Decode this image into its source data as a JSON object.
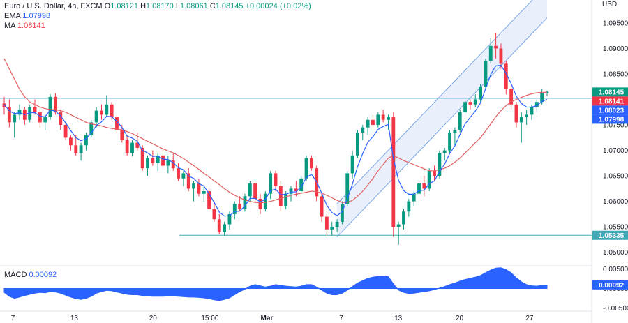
{
  "header": {
    "symbol": "Euro / U.S. Dollar, 4h, FXCM",
    "ohlc": [
      {
        "key": "O",
        "value": "1.08121"
      },
      {
        "key": "H",
        "value": "1.08170"
      },
      {
        "key": "L",
        "value": "1.08061"
      },
      {
        "key": "C",
        "value": "1.08145"
      }
    ],
    "change": "+0.00024 (+0.02%)",
    "ema_label": "EMA",
    "ema_value": "1.07998",
    "ma_label": "MA",
    "ma_value": "1.08141"
  },
  "currency": "USD",
  "macd": {
    "label": "MACD",
    "value": "0.00092"
  },
  "colors": {
    "up": "#089981",
    "down": "#f23645",
    "ema": "#2962ff",
    "ma": "#e06060",
    "hline": "#3fa9b5",
    "channel": "#e3ecfb",
    "channel_edge": "#7aa5e6",
    "macd": "#2962ff"
  },
  "chart_data": [
    {
      "type": "line",
      "title": "",
      "series_names": [],
      "ylim": [
        1.0475,
        1.0995
      ],
      "yticks": [
        "1.09500",
        "1.09000",
        "1.08500",
        "1.08000",
        "1.07500",
        "1.07000",
        "1.06500",
        "1.06000",
        "1.05500",
        "1.05000"
      ],
      "xticks": [
        "7",
        "13",
        "20",
        "15:00",
        "Mar",
        "7",
        "13",
        "20",
        "27"
      ],
      "price_badges": [
        {
          "value": "1.08145",
          "color": "#089981"
        },
        {
          "value": "1.08141",
          "color": "#f23645"
        },
        {
          "value": "1.08023",
          "color": "#2962ff"
        },
        {
          "value": "1.07998",
          "color": "#2962ff"
        },
        {
          "value": "1.05335",
          "color": "#3fa9b5"
        }
      ],
      "horizontal_levels": [
        1.08023,
        1.05335
      ],
      "candles": [
        [
          1.0792,
          1.0805,
          1.077,
          1.0785
        ],
        [
          1.0785,
          1.08,
          1.0745,
          1.0755
        ],
        [
          1.0755,
          1.0775,
          1.0725,
          1.077
        ],
        [
          1.077,
          1.079,
          1.076,
          1.078
        ],
        [
          1.078,
          1.0785,
          1.075,
          1.076
        ],
        [
          1.076,
          1.079,
          1.0755,
          1.0785
        ],
        [
          1.0785,
          1.08,
          1.077,
          1.0775
        ],
        [
          1.0775,
          1.078,
          1.0745,
          1.0755
        ],
        [
          1.0755,
          1.077,
          1.074,
          1.0765
        ],
        [
          1.0765,
          1.081,
          1.076,
          1.0805
        ],
        [
          1.0805,
          1.0812,
          1.077,
          1.0775
        ],
        [
          1.0775,
          1.078,
          1.074,
          1.075
        ],
        [
          1.075,
          1.0755,
          1.072,
          1.0725
        ],
        [
          1.0725,
          1.073,
          1.07,
          1.071
        ],
        [
          1.071,
          1.073,
          1.069,
          1.0695
        ],
        [
          1.0695,
          1.0715,
          1.068,
          1.071
        ],
        [
          1.071,
          1.0735,
          1.07,
          1.073
        ],
        [
          1.073,
          1.076,
          1.0725,
          1.0755
        ],
        [
          1.0755,
          1.0785,
          1.0745,
          1.0778
        ],
        [
          1.0778,
          1.079,
          1.076,
          1.077
        ],
        [
          1.077,
          1.0808,
          1.0765,
          1.079
        ],
        [
          1.079,
          1.0795,
          1.076,
          1.0765
        ],
        [
          1.0765,
          1.077,
          1.0735,
          1.074
        ],
        [
          1.074,
          1.075,
          1.0715,
          1.072
        ],
        [
          1.072,
          1.073,
          1.069,
          1.0695
        ],
        [
          1.0695,
          1.072,
          1.0688,
          1.0715
        ],
        [
          1.0715,
          1.0735,
          1.07,
          1.0705
        ],
        [
          1.0705,
          1.071,
          1.066,
          1.0665
        ],
        [
          1.0665,
          1.069,
          1.065,
          1.0685
        ],
        [
          1.0685,
          1.07,
          1.067,
          1.0675
        ],
        [
          1.0675,
          1.0695,
          1.066,
          1.069
        ],
        [
          1.069,
          1.07,
          1.0665,
          1.067
        ],
        [
          1.067,
          1.069,
          1.0655,
          1.068
        ],
        [
          1.068,
          1.0695,
          1.066,
          1.0665
        ],
        [
          1.0665,
          1.0675,
          1.064,
          1.0645
        ],
        [
          1.0645,
          1.066,
          1.063,
          1.0655
        ],
        [
          1.0655,
          1.0665,
          1.062,
          1.0625
        ],
        [
          1.0625,
          1.064,
          1.06,
          1.0635
        ],
        [
          1.0635,
          1.0645,
          1.061,
          1.0615
        ],
        [
          1.0615,
          1.063,
          1.06,
          1.062
        ],
        [
          1.062,
          1.0625,
          1.058,
          1.0585
        ],
        [
          1.0585,
          1.06,
          1.056,
          1.0565
        ],
        [
          1.0565,
          1.0575,
          1.0535,
          1.054
        ],
        [
          1.054,
          1.056,
          1.0533,
          1.0555
        ],
        [
          1.0555,
          1.058,
          1.0545,
          1.0575
        ],
        [
          1.0575,
          1.06,
          1.0565,
          1.0595
        ],
        [
          1.0595,
          1.061,
          1.058,
          1.0585
        ],
        [
          1.0585,
          1.0615,
          1.058,
          1.061
        ],
        [
          1.061,
          1.064,
          1.06,
          1.0635
        ],
        [
          1.0635,
          1.064,
          1.06,
          1.0605
        ],
        [
          1.0605,
          1.0615,
          1.0575,
          1.0585
        ],
        [
          1.0585,
          1.062,
          1.058,
          1.0615
        ],
        [
          1.0615,
          1.066,
          1.0605,
          1.0655
        ],
        [
          1.0655,
          1.066,
          1.062,
          1.063
        ],
        [
          1.063,
          1.064,
          1.058,
          1.059
        ],
        [
          1.059,
          1.062,
          1.0585,
          1.0615
        ],
        [
          1.0615,
          1.063,
          1.06,
          1.0625
        ],
        [
          1.0625,
          1.064,
          1.061,
          1.062
        ],
        [
          1.062,
          1.065,
          1.0615,
          1.0645
        ],
        [
          1.0645,
          1.069,
          1.064,
          1.0685
        ],
        [
          1.0685,
          1.069,
          1.066,
          1.0665
        ],
        [
          1.0665,
          1.067,
          1.06,
          1.061
        ],
        [
          1.061,
          1.0615,
          1.056,
          1.057
        ],
        [
          1.057,
          1.0575,
          1.0533,
          1.0545
        ],
        [
          1.0545,
          1.056,
          1.0533,
          1.055
        ],
        [
          1.055,
          1.0565,
          1.054,
          1.056
        ],
        [
          1.056,
          1.06,
          1.0555,
          1.0595
        ],
        [
          1.0595,
          1.066,
          1.059,
          1.0655
        ],
        [
          1.0655,
          1.07,
          1.0645,
          1.069
        ],
        [
          1.069,
          1.074,
          1.0685,
          1.0735
        ],
        [
          1.0735,
          1.075,
          1.072,
          1.0745
        ],
        [
          1.0745,
          1.0765,
          1.073,
          1.076
        ],
        [
          1.076,
          1.077,
          1.074,
          1.075
        ],
        [
          1.075,
          1.0775,
          1.0745,
          1.077
        ],
        [
          1.077,
          1.078,
          1.0755,
          1.076
        ],
        [
          1.076,
          1.077,
          1.074,
          1.0765
        ],
        [
          1.0765,
          1.0775,
          1.053,
          1.055
        ],
        [
          1.055,
          1.056,
          1.0515,
          1.0555
        ],
        [
          1.0555,
          1.0585,
          1.0545,
          1.058
        ],
        [
          1.058,
          1.0605,
          1.057,
          1.06
        ],
        [
          1.06,
          1.062,
          1.059,
          1.0615
        ],
        [
          1.0615,
          1.064,
          1.0605,
          1.0635
        ],
        [
          1.0635,
          1.065,
          1.061,
          1.0625
        ],
        [
          1.0625,
          1.0665,
          1.062,
          1.066
        ],
        [
          1.066,
          1.067,
          1.064,
          1.065
        ],
        [
          1.065,
          1.07,
          1.0645,
          1.0695
        ],
        [
          1.0695,
          1.0705,
          1.068,
          1.07
        ],
        [
          1.07,
          1.074,
          1.0695,
          1.0735
        ],
        [
          1.0735,
          1.0745,
          1.071,
          1.074
        ],
        [
          1.074,
          1.078,
          1.0735,
          1.0775
        ],
        [
          1.0775,
          1.08,
          1.077,
          1.0795
        ],
        [
          1.0795,
          1.08,
          1.078,
          1.079
        ],
        [
          1.079,
          1.081,
          1.0785,
          1.08
        ],
        [
          1.08,
          1.083,
          1.0795,
          1.0825
        ],
        [
          1.0825,
          1.088,
          1.082,
          1.0875
        ],
        [
          1.0875,
          1.092,
          1.087,
          1.0905
        ],
        [
          1.0905,
          1.093,
          1.088,
          1.09
        ],
        [
          1.09,
          1.091,
          1.086,
          1.087
        ],
        [
          1.087,
          1.0875,
          1.081,
          1.082
        ],
        [
          1.082,
          1.083,
          1.078,
          1.079
        ],
        [
          1.079,
          1.0795,
          1.0745,
          1.0755
        ],
        [
          1.0755,
          1.0775,
          1.0715,
          1.0765
        ],
        [
          1.0765,
          1.078,
          1.075,
          1.077
        ],
        [
          1.077,
          1.079,
          1.076,
          1.0785
        ],
        [
          1.0785,
          1.08,
          1.0775,
          1.0795
        ],
        [
          1.0795,
          1.082,
          1.079,
          1.0812
        ],
        [
          1.0812,
          1.0817,
          1.0806,
          1.0815
        ]
      ],
      "ema": [
        1.079,
        1.0778,
        1.0772,
        1.0774,
        1.077,
        1.0774,
        1.0774,
        1.0767,
        1.0766,
        1.0779,
        1.0777,
        1.0768,
        1.0754,
        1.0739,
        1.0725,
        1.0719,
        1.0723,
        1.0734,
        1.0749,
        1.0756,
        1.0767,
        1.0766,
        1.0757,
        1.0745,
        1.0728,
        1.0724,
        1.0718,
        1.07,
        1.0695,
        1.0688,
        1.0689,
        1.0683,
        1.0682,
        1.0676,
        1.0666,
        1.0662,
        1.065,
        1.0645,
        1.0635,
        1.063,
        1.0615,
        1.0598,
        1.0579,
        1.0571,
        1.0572,
        1.058,
        1.0581,
        1.0591,
        1.0606,
        1.0606,
        1.0599,
        1.0604,
        1.0621,
        1.0624,
        1.0613,
        1.0614,
        1.0618,
        1.0619,
        1.0628,
        1.0647,
        1.0653,
        1.0639,
        1.0616,
        1.0592,
        1.0578,
        1.0572,
        1.058,
        1.0605,
        1.0634,
        1.0668,
        1.0694,
        1.0716,
        1.0727,
        1.0741,
        1.0747,
        1.0751,
        1.0684,
        1.0641,
        1.0621,
        1.0614,
        1.0614,
        1.0621,
        1.0622,
        1.0635,
        1.064,
        1.0659,
        1.0673,
        1.0694,
        1.0709,
        1.0731,
        1.0752,
        1.0765,
        1.0777,
        1.0793,
        1.0821,
        1.0849,
        1.0866,
        1.0867,
        1.0851,
        1.0831,
        1.0806,
        1.0792,
        1.0785,
        1.0785,
        1.0788,
        1.0796,
        1.08
      ],
      "ma": [
        1.088,
        1.086,
        1.084,
        1.082,
        1.0805,
        1.0795,
        1.079,
        1.0785,
        1.0782,
        1.078,
        1.078,
        1.0778,
        1.0775,
        1.077,
        1.0765,
        1.076,
        1.0755,
        1.0752,
        1.075,
        1.0748,
        1.0745,
        1.0743,
        1.0742,
        1.074,
        1.0737,
        1.0733,
        1.0728,
        1.0723,
        1.0718,
        1.0713,
        1.0708,
        1.0703,
        1.0699,
        1.0695,
        1.069,
        1.0684,
        1.0677,
        1.067,
        1.0663,
        1.0655,
        1.0648,
        1.064,
        1.0633,
        1.0625,
        1.0618,
        1.0612,
        1.0607,
        1.0603,
        1.06,
        1.0598,
        1.0597,
        1.0598,
        1.06,
        1.0603,
        1.0606,
        1.0609,
        1.0612,
        1.0614,
        1.0616,
        1.0618,
        1.062,
        1.0619,
        1.0616,
        1.0612,
        1.0607,
        1.0602,
        1.0598,
        1.0598,
        1.0602,
        1.061,
        1.062,
        1.0632,
        1.0645,
        1.066,
        1.0672,
        1.0685,
        1.069,
        1.0685,
        1.068,
        1.0676,
        1.0672,
        1.0668,
        1.0664,
        1.066,
        1.066,
        1.0662,
        1.0665,
        1.067,
        1.0677,
        1.0685,
        1.0695,
        1.0705,
        1.0715,
        1.0725,
        1.0738,
        1.0752,
        1.0766,
        1.0778,
        1.0788,
        1.0795,
        1.08,
        1.0804,
        1.0808,
        1.0811,
        1.0813,
        1.0814,
        1.0814
      ],
      "channel": {
        "lower": [
          [
            1.053,
            76
          ],
          [
            1.096,
            124
          ]
        ],
        "upper": [
          [
            1.0595,
            76
          ],
          [
            1.1025,
            124
          ]
        ]
      }
    },
    {
      "type": "area",
      "title": "",
      "ylabel": "MACD",
      "ylim": [
        -0.0056,
        0.0056
      ],
      "yticks": [
        "0.00500",
        "0.00000",
        "-0.00500"
      ],
      "current_value": "0.00092",
      "values": [
        -0.001,
        -0.002,
        -0.0025,
        -0.0022,
        -0.0018,
        -0.0015,
        -0.0012,
        -0.001,
        -0.0011,
        -0.0008,
        -0.0009,
        -0.0012,
        -0.0017,
        -0.0022,
        -0.0026,
        -0.0028,
        -0.0025,
        -0.002,
        -0.0012,
        -0.0008,
        -0.0005,
        -0.0006,
        -0.0009,
        -0.0012,
        -0.0015,
        -0.0016,
        -0.0016,
        -0.0018,
        -0.0019,
        -0.002,
        -0.002,
        -0.002,
        -0.0019,
        -0.0019,
        -0.002,
        -0.0021,
        -0.0022,
        -0.0022,
        -0.0023,
        -0.0024,
        -0.0026,
        -0.0029,
        -0.0031,
        -0.0028,
        -0.0024,
        -0.0016,
        -0.0008,
        -0.0002,
        0.0006,
        0.001,
        0.0007,
        0.0004,
        0.0006,
        0.001,
        0.0008,
        0.0006,
        0.0005,
        0.0004,
        0.0006,
        0.001,
        0.001,
        0.0004,
        -0.0004,
        -0.0012,
        -0.0016,
        -0.0016,
        -0.0012,
        -0.0004,
        0.0005,
        0.0014,
        0.002,
        0.0026,
        0.0029,
        0.0031,
        0.0031,
        0.003,
        0.0012,
        -0.0004,
        -0.001,
        -0.0013,
        -0.0012,
        -0.001,
        -0.0008,
        -0.0006,
        -0.0003,
        0.0001,
        0.0005,
        0.001,
        0.0014,
        0.0019,
        0.0023,
        0.0026,
        0.0029,
        0.0033,
        0.004,
        0.0047,
        0.0052,
        0.0053,
        0.0048,
        0.004,
        0.0027,
        0.0017,
        0.001,
        0.0007,
        0.0006,
        0.0008,
        0.0009
      ]
    }
  ]
}
